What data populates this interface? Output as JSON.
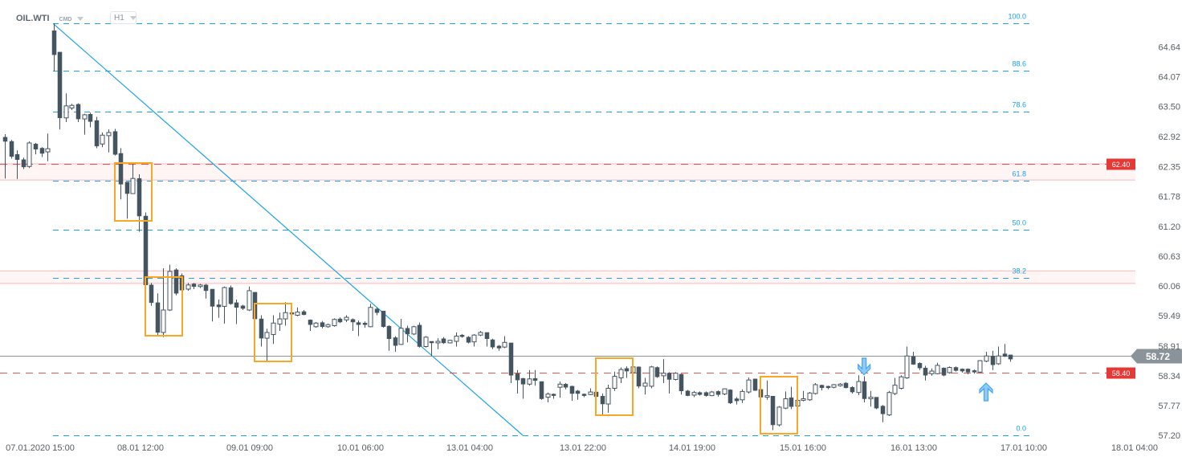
{
  "header": {
    "symbol": "OIL.WTI",
    "category": "CMD",
    "timeframe": "H1"
  },
  "colors": {
    "candle": "#455560",
    "fib": "#1aa3e8",
    "level": "#e53935",
    "zone": "#fff5f5",
    "zone_border": "#f7b9b9",
    "box": "#f9a825",
    "arrow": "#42a5f5",
    "current": "#8a9399"
  },
  "chart_data": {
    "type": "candlestick",
    "title": "",
    "ylim": [
      57.2,
      65.54
    ],
    "y_ticks": [
      "64.64",
      "64.07",
      "63.50",
      "62.92",
      "62.35",
      "61.78",
      "61.20",
      "60.63",
      "60.06",
      "59.49",
      "58.91",
      "58.34",
      "57.77",
      "57.20"
    ],
    "x_ticks": [
      "07.01.2020  15:00",
      "08.01  12:00",
      "09.01  09:00",
      "10.01  06:00",
      "13.01  04:00",
      "13.01  22:00",
      "14.01  19:00",
      "15.01  16:00",
      "16.01  13:00",
      "17.01  10:00",
      "18.01  04:00"
    ],
    "candles_ohlc": [
      [
        62.91,
        62.97,
        62.12,
        62.83
      ],
      [
        62.83,
        62.86,
        62.5,
        62.54
      ],
      [
        62.58,
        62.66,
        62.11,
        62.48
      ],
      [
        62.48,
        62.52,
        62.3,
        62.34
      ],
      [
        62.35,
        62.83,
        62.32,
        62.8
      ],
      [
        62.78,
        62.8,
        62.58,
        62.68
      ],
      [
        62.7,
        62.72,
        62.53,
        62.6
      ],
      [
        62.63,
        62.98,
        62.45,
        62.69
      ],
      [
        64.95,
        65.09,
        64.17,
        64.49
      ],
      [
        64.54,
        64.54,
        63.06,
        63.28
      ],
      [
        63.28,
        63.75,
        63.2,
        63.51
      ],
      [
        63.47,
        63.55,
        63.43,
        63.52
      ],
      [
        63.54,
        63.56,
        63.2,
        63.26
      ],
      [
        63.26,
        63.36,
        62.96,
        63.34
      ],
      [
        63.35,
        63.38,
        63.1,
        63.21
      ],
      [
        63.23,
        63.3,
        62.7,
        62.74
      ],
      [
        62.78,
        63.0,
        62.72,
        62.95
      ],
      [
        62.94,
        63.06,
        62.62,
        63.0
      ],
      [
        63.02,
        63.07,
        62.56,
        62.58
      ],
      [
        62.6,
        62.7,
        61.72,
        62.01
      ],
      [
        62.05,
        62.05,
        61.35,
        61.83
      ],
      [
        61.83,
        62.43,
        61.83,
        62.12
      ],
      [
        62.12,
        62.2,
        61.1,
        61.4
      ],
      [
        61.4,
        61.47,
        59.72,
        60.08
      ],
      [
        60.08,
        60.12,
        59.68,
        59.74
      ],
      [
        59.74,
        59.92,
        59.1,
        59.17
      ],
      [
        59.17,
        60.4,
        59.08,
        59.6
      ],
      [
        59.6,
        60.47,
        59.58,
        60.34
      ],
      [
        60.37,
        60.4,
        59.88,
        59.92
      ],
      [
        60.26,
        60.3,
        59.93,
        59.98
      ],
      [
        60.0,
        60.12,
        59.97,
        60.08
      ],
      [
        60.1,
        60.12,
        60.0,
        60.05
      ],
      [
        60.05,
        60.1,
        60.02,
        60.08
      ],
      [
        60.08,
        60.1,
        59.82,
        59.97
      ],
      [
        60.0,
        60.0,
        59.38,
        59.67
      ],
      [
        59.7,
        59.8,
        59.45,
        59.66
      ],
      [
        59.67,
        60.05,
        59.34,
        60.03
      ],
      [
        60.03,
        60.07,
        59.7,
        59.72
      ],
      [
        59.74,
        59.8,
        59.33,
        59.65
      ],
      [
        59.68,
        59.7,
        59.6,
        59.63
      ],
      [
        59.6,
        60.05,
        59.58,
        59.97
      ],
      [
        59.94,
        59.94,
        59.32,
        59.43
      ],
      [
        59.43,
        59.5,
        58.9,
        59.06
      ],
      [
        59.06,
        59.24,
        58.6,
        59.17
      ],
      [
        59.13,
        59.5,
        58.95,
        59.35
      ],
      [
        59.33,
        59.55,
        59.2,
        59.43
      ],
      [
        59.43,
        59.75,
        59.3,
        59.55
      ],
      [
        59.55,
        59.56,
        59.3,
        59.52
      ],
      [
        59.5,
        59.65,
        59.48,
        59.56
      ],
      [
        59.57,
        59.6,
        59.5,
        59.51
      ],
      [
        59.41,
        59.42,
        59.2,
        59.32
      ],
      [
        59.28,
        59.37,
        59.26,
        59.35
      ],
      [
        59.36,
        59.39,
        59.25,
        59.28
      ],
      [
        59.28,
        59.34,
        59.26,
        59.32
      ],
      [
        59.3,
        59.44,
        59.28,
        59.42
      ],
      [
        59.43,
        59.46,
        59.35,
        59.37
      ],
      [
        59.41,
        59.5,
        59.37,
        59.46
      ],
      [
        59.42,
        59.44,
        59.2,
        59.37
      ],
      [
        59.36,
        59.4,
        59.1,
        59.32
      ],
      [
        59.35,
        59.38,
        59.26,
        59.32
      ],
      [
        59.28,
        59.72,
        59.27,
        59.65
      ],
      [
        59.62,
        59.65,
        59.5,
        59.55
      ],
      [
        59.58,
        59.58,
        59.26,
        59.28
      ],
      [
        59.29,
        59.31,
        58.82,
        59.05
      ],
      [
        59.07,
        59.1,
        58.8,
        58.92
      ],
      [
        58.94,
        59.43,
        58.93,
        59.25
      ],
      [
        59.25,
        59.3,
        58.98,
        59.14
      ],
      [
        59.14,
        59.3,
        59.12,
        59.28
      ],
      [
        59.31,
        59.36,
        58.88,
        58.9
      ],
      [
        58.9,
        59.1,
        58.88,
        59.08
      ],
      [
        59.0,
        59.0,
        58.72,
        58.97
      ],
      [
        58.97,
        59.06,
        58.85,
        59.0
      ],
      [
        59.05,
        59.08,
        58.95,
        58.97
      ],
      [
        58.97,
        59.03,
        58.96,
        59.02
      ],
      [
        59.0,
        59.17,
        58.9,
        59.1
      ],
      [
        59.12,
        59.14,
        59.07,
        59.09
      ],
      [
        59.08,
        59.1,
        58.96,
        58.98
      ],
      [
        58.99,
        59.14,
        58.9,
        59.12
      ],
      [
        59.12,
        59.2,
        59.1,
        59.17
      ],
      [
        59.17,
        59.17,
        58.9,
        59.05
      ],
      [
        59.03,
        59.05,
        58.85,
        58.89
      ],
      [
        58.91,
        58.93,
        58.82,
        58.87
      ],
      [
        58.89,
        59.1,
        58.87,
        58.98
      ],
      [
        58.97,
        58.97,
        58.2,
        58.35
      ],
      [
        58.38,
        58.45,
        58.0,
        58.26
      ],
      [
        58.29,
        58.3,
        57.9,
        58.18
      ],
      [
        58.18,
        58.45,
        58.15,
        58.28
      ],
      [
        58.29,
        58.45,
        58.15,
        58.25
      ],
      [
        58.23,
        58.23,
        57.88,
        57.9
      ],
      [
        57.93,
        58.02,
        57.83,
        57.99
      ],
      [
        57.99,
        58.0,
        57.9,
        57.96
      ],
      [
        58.12,
        58.23,
        57.92,
        58.18
      ],
      [
        58.18,
        58.2,
        58.08,
        58.12
      ],
      [
        58.14,
        58.15,
        57.86,
        58.0
      ],
      [
        58.05,
        58.07,
        57.88,
        58.0
      ],
      [
        57.99,
        58.0,
        57.93,
        57.96
      ],
      [
        57.98,
        58.1,
        57.97,
        58.03
      ],
      [
        58.03,
        58.03,
        57.93,
        57.94
      ],
      [
        57.95,
        58.0,
        57.6,
        57.8
      ],
      [
        57.8,
        58.17,
        57.63,
        58.1
      ],
      [
        58.1,
        58.42,
        58.05,
        58.33
      ],
      [
        58.3,
        58.5,
        58.2,
        58.46
      ],
      [
        58.48,
        58.52,
        58.3,
        58.43
      ],
      [
        58.4,
        58.55,
        58.38,
        58.51
      ],
      [
        58.51,
        58.52,
        58.1,
        58.14
      ],
      [
        58.14,
        58.3,
        57.98,
        58.2
      ],
      [
        58.14,
        58.53,
        58.1,
        58.51
      ],
      [
        58.5,
        58.52,
        58.3,
        58.32
      ],
      [
        58.34,
        58.66,
        58.2,
        58.39
      ],
      [
        58.39,
        58.41,
        58.0,
        58.27
      ],
      [
        58.27,
        58.41,
        58.25,
        58.39
      ],
      [
        58.37,
        58.38,
        57.98,
        58.05
      ],
      [
        58.05,
        58.07,
        57.95,
        57.96
      ],
      [
        57.97,
        58.05,
        57.93,
        58.02
      ],
      [
        58.02,
        58.04,
        57.96,
        57.98
      ],
      [
        58.02,
        58.04,
        57.94,
        57.96
      ],
      [
        57.96,
        58.05,
        57.95,
        58.03
      ],
      [
        58.04,
        58.06,
        57.94,
        57.98
      ],
      [
        57.99,
        58.1,
        57.97,
        58.09
      ],
      [
        58.07,
        58.08,
        57.8,
        57.82
      ],
      [
        57.9,
        57.93,
        57.79,
        57.86
      ],
      [
        57.88,
        58.08,
        57.82,
        58.04
      ],
      [
        58.03,
        58.31,
        58.0,
        58.26
      ],
      [
        58.28,
        58.28,
        58.05,
        58.06
      ],
      [
        58.08,
        58.08,
        57.93,
        57.93
      ],
      [
        57.93,
        58.25,
        57.88,
        57.96
      ],
      [
        57.95,
        57.95,
        57.3,
        57.4
      ],
      [
        57.4,
        57.76,
        57.37,
        57.74
      ],
      [
        57.72,
        58.04,
        57.7,
        57.9
      ],
      [
        57.92,
        58.13,
        57.7,
        57.75
      ],
      [
        57.76,
        57.92,
        57.6,
        57.87
      ],
      [
        57.87,
        58.05,
        57.85,
        57.9
      ],
      [
        57.88,
        58.03,
        57.86,
        58.01
      ],
      [
        58.0,
        58.2,
        57.98,
        58.17
      ],
      [
        58.16,
        58.17,
        58.06,
        58.11
      ],
      [
        58.14,
        58.15,
        58.08,
        58.11
      ],
      [
        58.12,
        58.18,
        58.1,
        58.17
      ],
      [
        58.15,
        58.2,
        58.13,
        58.18
      ],
      [
        58.2,
        58.22,
        58.1,
        58.11
      ],
      [
        58.12,
        58.14,
        58.0,
        58.03
      ],
      [
        58.02,
        58.35,
        57.97,
        58.23
      ],
      [
        58.23,
        58.33,
        57.83,
        57.9
      ],
      [
        57.9,
        58.05,
        57.75,
        57.93
      ],
      [
        57.93,
        57.93,
        57.7,
        57.72
      ],
      [
        57.76,
        57.78,
        57.45,
        57.61
      ],
      [
        57.59,
        58.05,
        57.57,
        58.02
      ],
      [
        58.0,
        58.3,
        57.97,
        58.16
      ],
      [
        58.1,
        58.35,
        58.08,
        58.32
      ],
      [
        58.3,
        58.9,
        58.28,
        58.72
      ],
      [
        58.71,
        58.8,
        58.55,
        58.56
      ],
      [
        58.58,
        58.6,
        58.45,
        58.49
      ],
      [
        58.49,
        58.53,
        58.25,
        58.35
      ],
      [
        58.38,
        58.48,
        58.34,
        58.43
      ],
      [
        58.38,
        58.59,
        58.37,
        58.54
      ],
      [
        58.49,
        58.5,
        58.33,
        58.35
      ],
      [
        58.4,
        58.52,
        58.38,
        58.5
      ],
      [
        58.5,
        58.52,
        58.42,
        58.44
      ],
      [
        58.47,
        58.48,
        58.4,
        58.43
      ],
      [
        58.47,
        58.48,
        58.37,
        58.41
      ],
      [
        58.44,
        58.46,
        58.38,
        58.41
      ],
      [
        58.41,
        58.64,
        58.4,
        58.63
      ],
      [
        58.62,
        58.8,
        58.6,
        58.72
      ],
      [
        58.72,
        58.82,
        58.45,
        58.55
      ],
      [
        58.57,
        58.9,
        58.55,
        58.72
      ],
      [
        58.76,
        58.95,
        58.7,
        58.71
      ],
      [
        58.74,
        58.74,
        58.61,
        58.66
      ]
    ],
    "fibonacci": {
      "high": 65.09,
      "low": 57.2,
      "levels": [
        {
          "ratio": 1.0,
          "label": "100.0"
        },
        {
          "ratio": 0.886,
          "label": "88.6"
        },
        {
          "ratio": 0.786,
          "label": "78.6"
        },
        {
          "ratio": 0.618,
          "label": "61.8"
        },
        {
          "ratio": 0.5,
          "label": "50.0"
        },
        {
          "ratio": 0.382,
          "label": "38.2"
        },
        {
          "ratio": 0.0,
          "label": "0.0"
        }
      ]
    },
    "trendline": {
      "from_price": 65.09,
      "to_price": 57.2
    },
    "zones": [
      {
        "top": 62.4,
        "bottom": 62.09
      },
      {
        "top": 60.35,
        "bottom": 60.11
      }
    ],
    "levels": [
      {
        "price": 62.4,
        "label": "62.40"
      },
      {
        "price": 58.4,
        "label": "58.40"
      }
    ],
    "current_price": {
      "price": 58.72,
      "label": "58.72"
    },
    "markers": [
      {
        "type": "arrow-down",
        "candle": 141
      },
      {
        "type": "arrow-up",
        "candle": 161
      }
    ]
  }
}
